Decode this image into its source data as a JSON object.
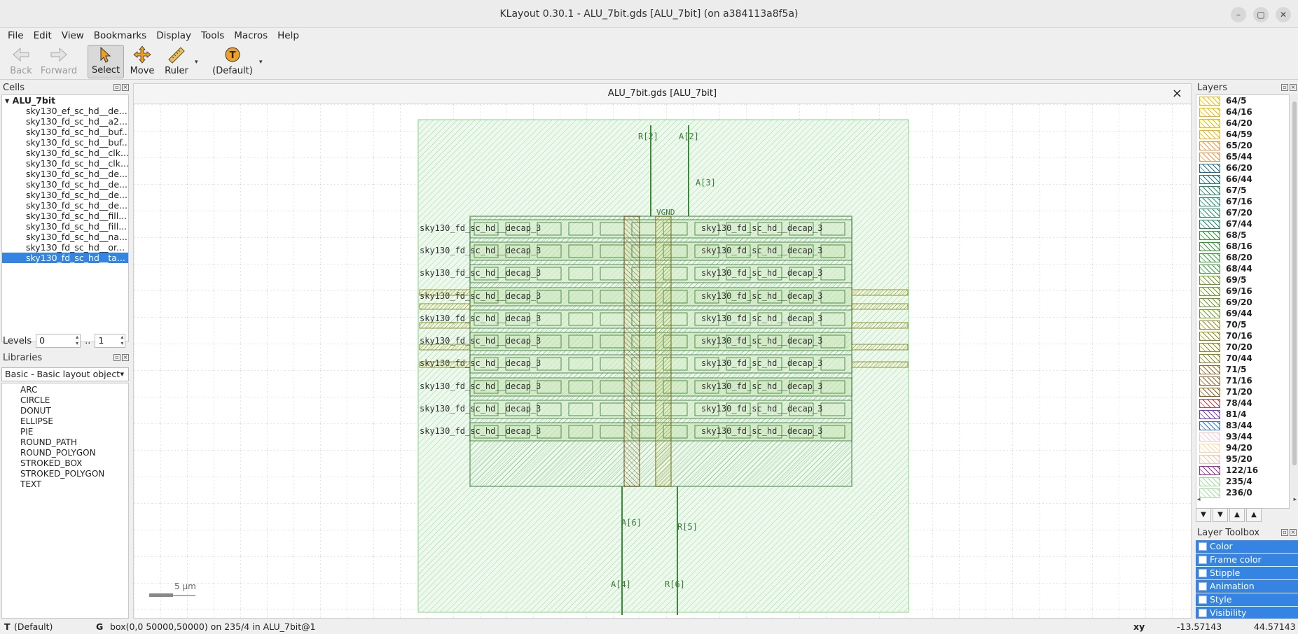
{
  "window": {
    "title": "KLayout 0.30.1 - ALU_7bit.gds [ALU_7bit] (on a384113a8f5a)"
  },
  "menu": [
    "File",
    "Edit",
    "View",
    "Bookmarks",
    "Display",
    "Tools",
    "Macros",
    "Help"
  ],
  "toolbar": {
    "back": "Back",
    "forward": "Forward",
    "select": "Select",
    "move": "Move",
    "ruler": "Ruler",
    "default": "(Default)"
  },
  "cells": {
    "title": "Cells",
    "root": "ALU_7bit",
    "items": [
      "sky130_ef_sc_hd__de...",
      "sky130_fd_sc_hd__a2...",
      "sky130_fd_sc_hd__buf...",
      "sky130_fd_sc_hd__buf...",
      "sky130_fd_sc_hd__clk...",
      "sky130_fd_sc_hd__clk...",
      "sky130_fd_sc_hd__de...",
      "sky130_fd_sc_hd__de...",
      "sky130_fd_sc_hd__de...",
      "sky130_fd_sc_hd__de...",
      "sky130_fd_sc_hd__fill...",
      "sky130_fd_sc_hd__fill...",
      "sky130_fd_sc_hd__na...",
      "sky130_fd_sc_hd__or...",
      "sky130_fd_sc_hd__ta..."
    ]
  },
  "levels": {
    "label": "Levels",
    "from": "0",
    "sep": "..",
    "to": "1"
  },
  "libraries": {
    "title": "Libraries",
    "selected": "Basic - Basic layout object",
    "items": [
      "ARC",
      "CIRCLE",
      "DONUT",
      "ELLIPSE",
      "PIE",
      "ROUND_PATH",
      "ROUND_POLYGON",
      "STROKED_BOX",
      "STROKED_POLYGON",
      "TEXT"
    ]
  },
  "canvas": {
    "tab": "ALU_7bit.gds [ALU_7bit]",
    "scale": "5 µm",
    "pins": [
      "R[2]",
      "A[2]",
      "A[3]",
      "VGND",
      "A[6]",
      "R[5]",
      "A[4]",
      "R[6]"
    ],
    "row_label": "sky130_fd_sc_hd__decap_3"
  },
  "layers": {
    "title": "Layers",
    "items": [
      {
        "name": "64/5",
        "color": "#f2b600"
      },
      {
        "name": "64/16",
        "color": "#f2b600"
      },
      {
        "name": "64/20",
        "color": "#f2b600"
      },
      {
        "name": "64/59",
        "color": "#f2b600"
      },
      {
        "name": "65/20",
        "color": "#f08a3c"
      },
      {
        "name": "65/44",
        "color": "#f08a3c"
      },
      {
        "name": "66/20",
        "color": "#1b6f8c"
      },
      {
        "name": "66/44",
        "color": "#1b6f8c"
      },
      {
        "name": "67/5",
        "color": "#1e8a63"
      },
      {
        "name": "67/16",
        "color": "#1e8a63"
      },
      {
        "name": "67/20",
        "color": "#1e8a63"
      },
      {
        "name": "67/44",
        "color": "#1e8a63"
      },
      {
        "name": "68/5",
        "color": "#2f9a2f"
      },
      {
        "name": "68/16",
        "color": "#2f9a2f"
      },
      {
        "name": "68/20",
        "color": "#2f9a2f"
      },
      {
        "name": "68/44",
        "color": "#2f9a2f"
      },
      {
        "name": "69/5",
        "color": "#6b9a24"
      },
      {
        "name": "69/16",
        "color": "#6b9a24"
      },
      {
        "name": "69/20",
        "color": "#6b9a24"
      },
      {
        "name": "69/44",
        "color": "#6b9a24"
      },
      {
        "name": "70/5",
        "color": "#8a8a1c"
      },
      {
        "name": "70/16",
        "color": "#8a8a1c"
      },
      {
        "name": "70/20",
        "color": "#8a8a1c"
      },
      {
        "name": "70/44",
        "color": "#8a8a1c"
      },
      {
        "name": "71/5",
        "color": "#8a5a1c"
      },
      {
        "name": "71/16",
        "color": "#8a5a1c"
      },
      {
        "name": "71/20",
        "color": "#8a5a1c"
      },
      {
        "name": "78/44",
        "color": "#d23a3a"
      },
      {
        "name": "81/4",
        "color": "#7a3ad2"
      },
      {
        "name": "83/44",
        "color": "#2a6ad2"
      },
      {
        "name": "93/44",
        "color": "#f4c8c8"
      },
      {
        "name": "94/20",
        "color": "#f6d8a8"
      },
      {
        "name": "95/20",
        "color": "#f6c0a8"
      },
      {
        "name": "122/16",
        "color": "#a02aa0"
      },
      {
        "name": "235/4",
        "color": "#9bd89b"
      },
      {
        "name": "236/0",
        "color": "#9bd89b"
      }
    ]
  },
  "toolbox": {
    "title": "Layer Toolbox",
    "items": [
      "Color",
      "Frame color",
      "Stipple",
      "Animation",
      "Style",
      "Visibility"
    ]
  },
  "status": {
    "mode": "T",
    "mode_text": "(Default)",
    "g": "G",
    "message": "box(0,0 50000,50000) on 235/4 in ALU_7bit@1",
    "xy_label": "xy",
    "x": "-13.57143",
    "y": "44.57143"
  }
}
